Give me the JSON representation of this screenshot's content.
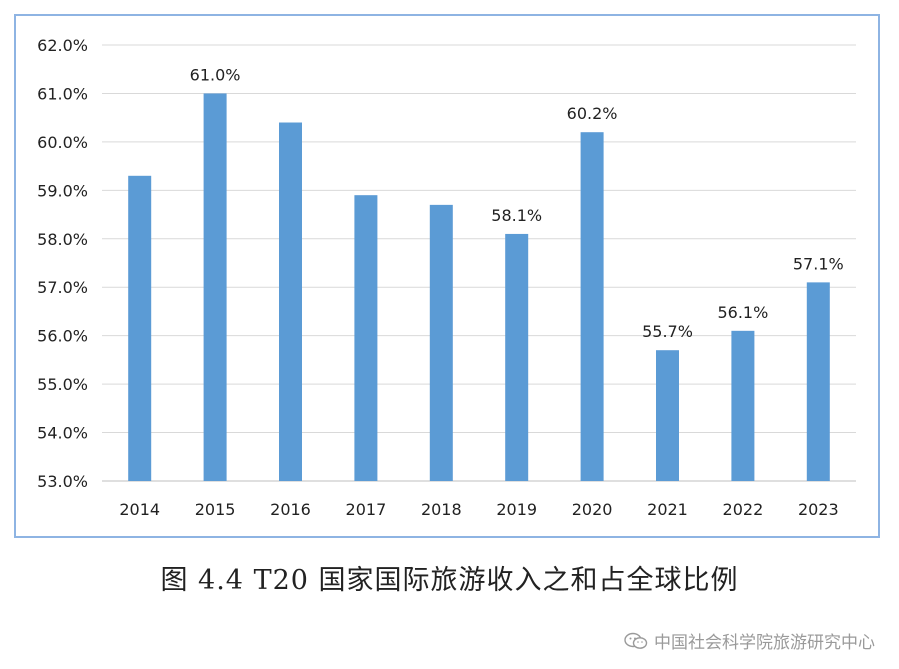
{
  "chart_data": {
    "type": "bar",
    "categories": [
      "2014",
      "2015",
      "2016",
      "2017",
      "2018",
      "2019",
      "2020",
      "2021",
      "2022",
      "2023"
    ],
    "values": [
      59.3,
      61.0,
      60.4,
      58.9,
      58.7,
      58.1,
      60.2,
      55.7,
      56.1,
      57.1
    ],
    "data_labels": [
      "",
      "61.0%",
      "",
      "",
      "",
      "58.1%",
      "60.2%",
      "55.7%",
      "56.1%",
      "57.1%"
    ],
    "y_ticks": [
      "53.0%",
      "54.0%",
      "55.0%",
      "56.0%",
      "57.0%",
      "58.0%",
      "59.0%",
      "60.0%",
      "61.0%",
      "62.0%"
    ],
    "ylim": [
      53,
      62
    ],
    "grid": true,
    "bar_color": "#5b9bd5",
    "grid_color": "#d9d9d9",
    "border_color": "#8eb4e3"
  },
  "caption": "图 4.4 T20 国家国际旅游收入之和占全球比例",
  "watermark": {
    "icon": "wechat-icon",
    "text": "中国社会科学院旅游研究中心"
  }
}
